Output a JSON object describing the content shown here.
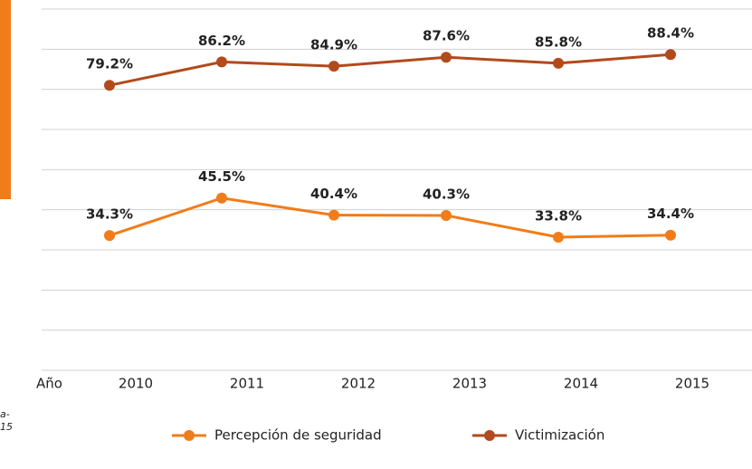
{
  "chart_data": {
    "type": "line",
    "categories": [
      "2010",
      "2011",
      "2012",
      "2013",
      "2014",
      "2015"
    ],
    "x_label": "Año",
    "series": [
      {
        "name": "Percepción de seguridad",
        "color": "#f07c1a",
        "values": [
          34.3,
          45.5,
          40.4,
          40.3,
          33.8,
          34.4
        ],
        "value_labels": [
          "34.3%",
          "45.5%",
          "40.4%",
          "40.3%",
          "33.8%",
          "34.4%"
        ]
      },
      {
        "name": "Victimización",
        "color": "#b24a1b",
        "values": [
          79.2,
          86.2,
          84.9,
          87.6,
          85.8,
          88.4
        ],
        "value_labels": [
          "79.2%",
          "86.2%",
          "84.9%",
          "87.6%",
          "85.8%",
          "88.4%"
        ]
      }
    ],
    "ylim": [
      -6,
      102
    ],
    "yticks": [
      -6,
      6,
      18,
      30,
      42,
      54,
      66,
      78,
      90,
      102
    ],
    "grid": true,
    "notes": [
      "a-",
      "15"
    ]
  }
}
